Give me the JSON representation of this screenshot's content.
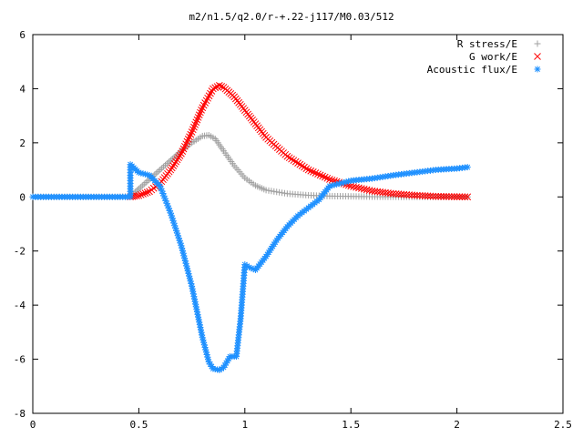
{
  "chart_data": {
    "type": "scatter",
    "title": "m2/n1.5/q2.0/r-+.22-j117/M0.03/512",
    "xlabel": "",
    "ylabel": "",
    "xlim": [
      0,
      2.5
    ],
    "ylim": [
      -8,
      6
    ],
    "xticks": [
      "0",
      "0.5",
      "1",
      "1.5",
      "2",
      "2.5"
    ],
    "yticks": [
      "-8",
      "-6",
      "-4",
      "-2",
      "0",
      "2",
      "4",
      "6"
    ],
    "legend_position": "top-right",
    "grid": false,
    "series": [
      {
        "name": "R stress/E",
        "marker": "+",
        "color": "#a0a0a0",
        "x": [
          0,
          0.1,
          0.2,
          0.3,
          0.4,
          0.46,
          0.5,
          0.55,
          0.6,
          0.65,
          0.7,
          0.75,
          0.8,
          0.83,
          0.86,
          0.9,
          0.95,
          1.0,
          1.05,
          1.1,
          1.2,
          1.3,
          1.4,
          1.5,
          1.6,
          1.8,
          2.05
        ],
        "y": [
          0,
          0,
          0,
          0,
          0,
          0.02,
          0.3,
          0.65,
          1.0,
          1.35,
          1.7,
          2.0,
          2.25,
          2.28,
          2.15,
          1.7,
          1.15,
          0.7,
          0.42,
          0.25,
          0.12,
          0.06,
          0.03,
          0.02,
          0.01,
          0.0,
          0.0
        ]
      },
      {
        "name": "G work/E",
        "marker": "×",
        "color": "#ff0000",
        "x": [
          0.46,
          0.5,
          0.55,
          0.6,
          0.65,
          0.7,
          0.75,
          0.8,
          0.85,
          0.88,
          0.9,
          0.95,
          1.0,
          1.05,
          1.1,
          1.2,
          1.3,
          1.4,
          1.5,
          1.6,
          1.7,
          1.8,
          1.9,
          2.05
        ],
        "y": [
          0.0,
          0.05,
          0.2,
          0.5,
          1.0,
          1.6,
          2.4,
          3.3,
          4.0,
          4.12,
          4.05,
          3.7,
          3.2,
          2.7,
          2.2,
          1.5,
          1.0,
          0.65,
          0.4,
          0.22,
          0.12,
          0.06,
          0.02,
          0.0
        ]
      },
      {
        "name": "Acoustic flux/E",
        "marker": "✱",
        "color": "#1e90ff",
        "x": [
          0,
          0.1,
          0.2,
          0.3,
          0.4,
          0.46,
          0.46,
          0.5,
          0.55,
          0.6,
          0.65,
          0.7,
          0.75,
          0.8,
          0.83,
          0.85,
          0.88,
          0.9,
          0.93,
          0.96,
          0.98,
          1.0,
          1.02,
          1.05,
          1.1,
          1.15,
          1.2,
          1.25,
          1.3,
          1.35,
          1.4,
          1.5,
          1.6,
          1.7,
          1.8,
          1.9,
          2.0,
          2.05
        ],
        "y": [
          0,
          0,
          0,
          0,
          0,
          0.0,
          1.2,
          0.9,
          0.8,
          0.4,
          -0.6,
          -1.8,
          -3.3,
          -5.2,
          -6.1,
          -6.35,
          -6.4,
          -6.3,
          -5.9,
          -5.9,
          -4.5,
          -2.5,
          -2.6,
          -2.7,
          -2.2,
          -1.6,
          -1.1,
          -0.7,
          -0.4,
          -0.1,
          0.4,
          0.6,
          0.68,
          0.8,
          0.9,
          1.0,
          1.05,
          1.1
        ]
      }
    ]
  }
}
